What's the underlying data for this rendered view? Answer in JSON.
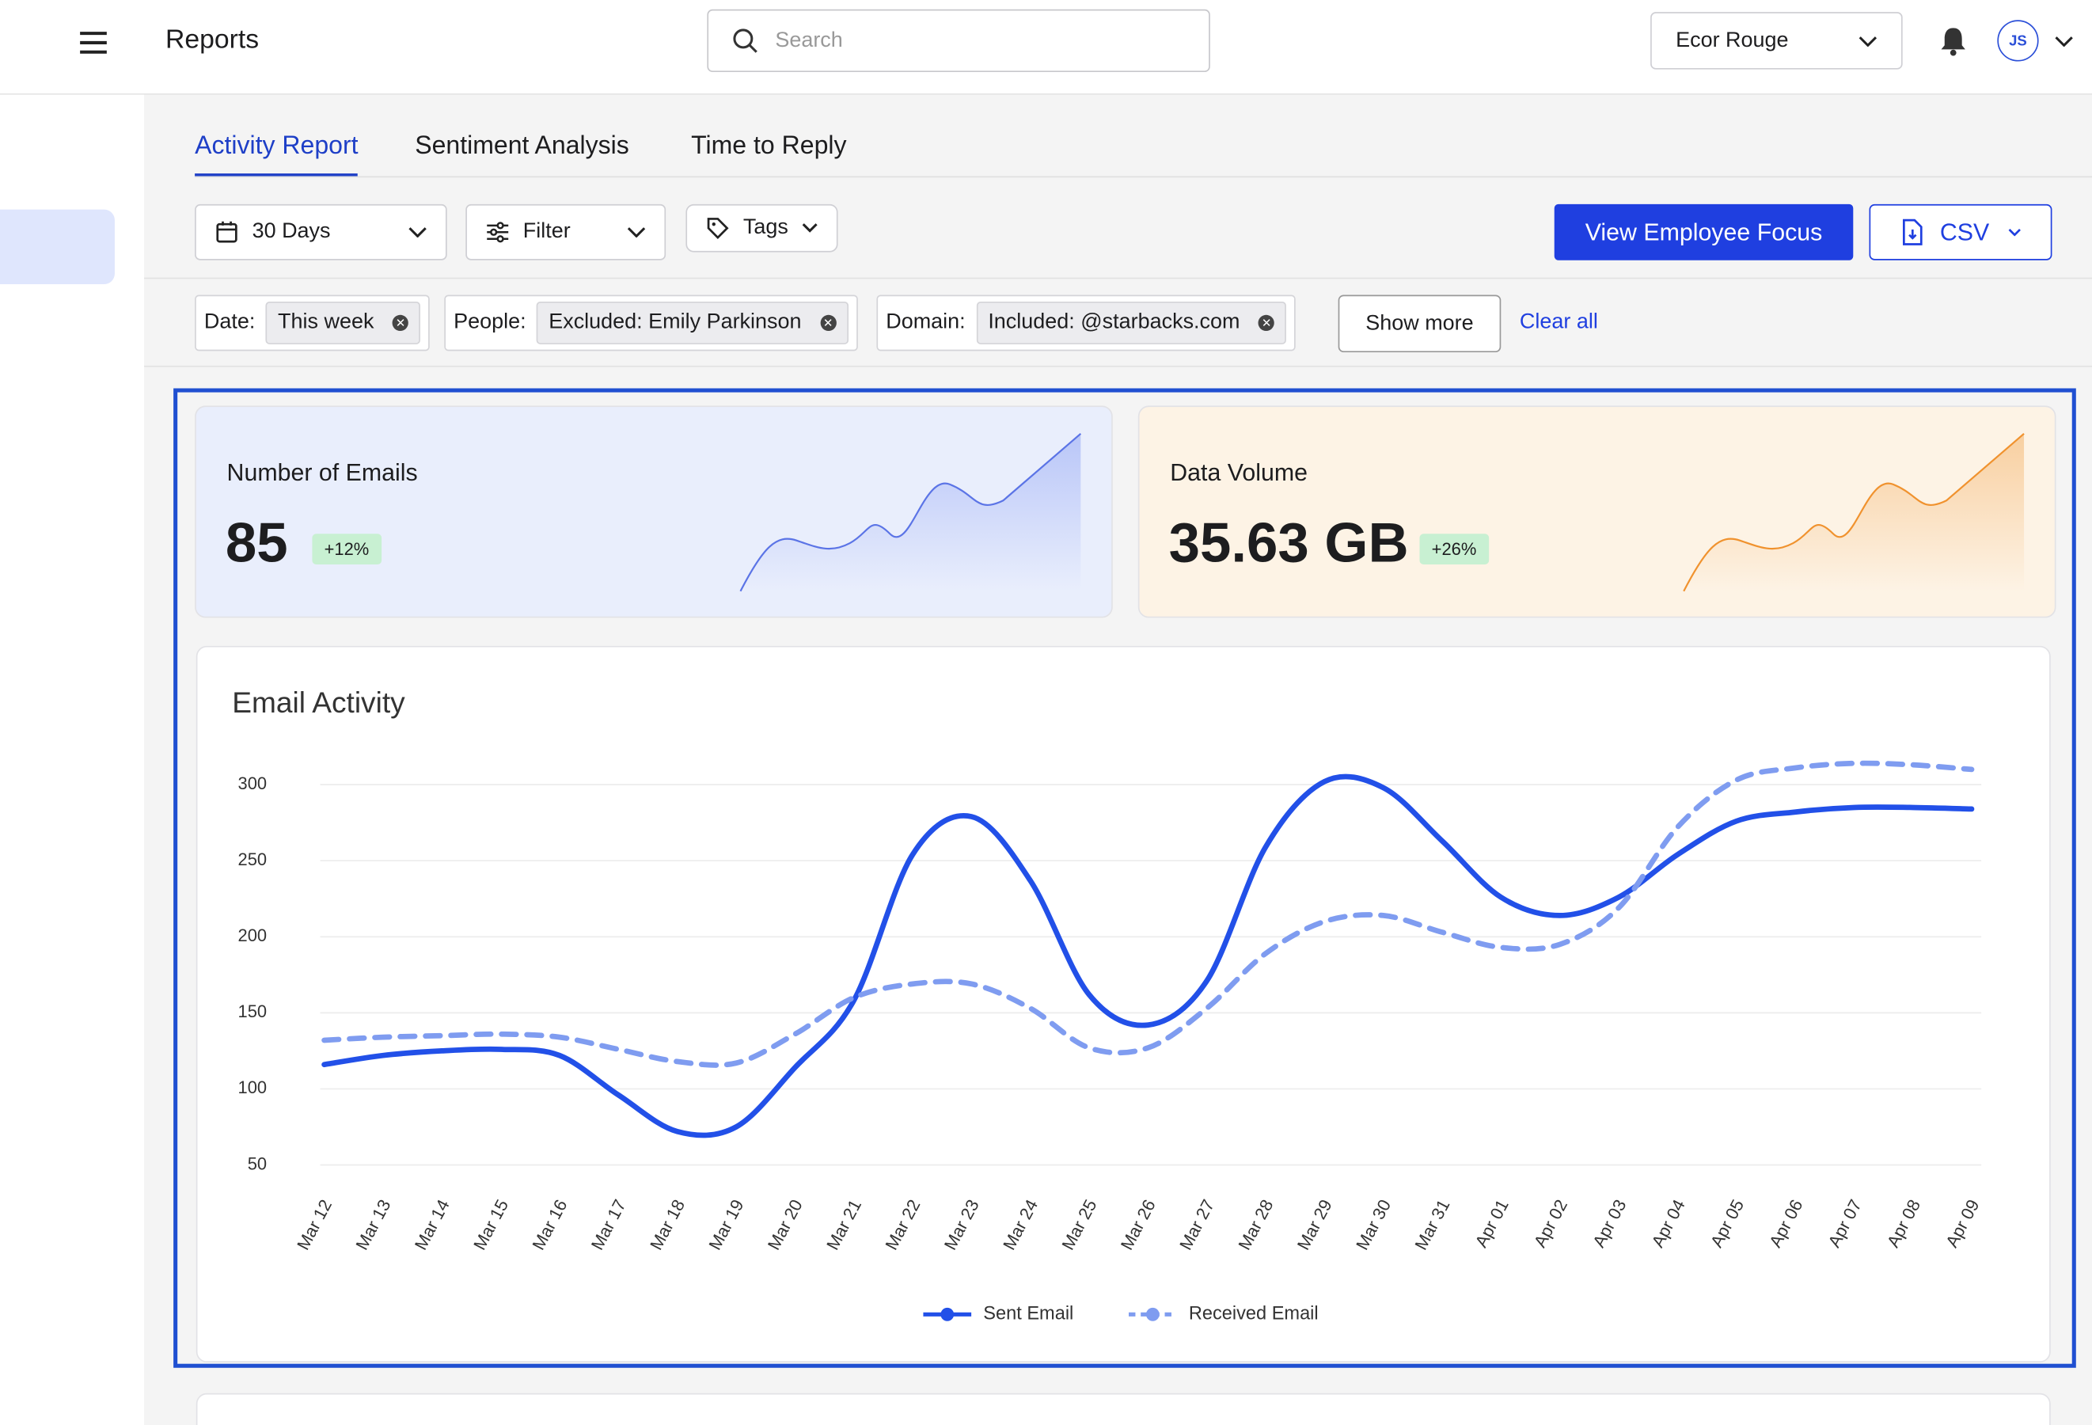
{
  "header": {
    "title": "Reports",
    "search_placeholder": "Search",
    "organization": "Ecor Rouge",
    "avatar": "JS"
  },
  "tabs": [
    "Activity Report",
    "Sentiment Analysis",
    "Time to Reply"
  ],
  "toolbar": {
    "range": "30 Days",
    "filter": "Filter",
    "tags": "Tags",
    "primary_action": "View Employee Focus",
    "export": "CSV"
  },
  "filters": [
    {
      "label": "Date:",
      "value": "This week"
    },
    {
      "label": "People:",
      "value": "Excluded: Emily Parkinson"
    },
    {
      "label": "Domain:",
      "value": "Included: @starbacks.com"
    }
  ],
  "show_more": "Show more",
  "clear_all": "Clear all",
  "cards": [
    {
      "title": "Number of Emails",
      "value": "85",
      "change": "+12%"
    },
    {
      "title": "Data Volume",
      "value": "35.63 GB",
      "change": "+26%"
    }
  ],
  "chart_data": {
    "type": "line",
    "title": "Email Activity",
    "categories": [
      "Mar 12",
      "Mar 13",
      "Mar 14",
      "Mar 15",
      "Mar 16",
      "Mar 17",
      "Mar 18",
      "Mar 19",
      "Mar 20",
      "Mar 21",
      "Mar 22",
      "Mar 23",
      "Mar 24",
      "Mar 25",
      "Mar 26",
      "Mar 27",
      "Mar 28",
      "Mar 29",
      "Mar 30",
      "Mar 31",
      "Apr 01",
      "Apr 02",
      "Apr 03",
      "Apr 04",
      "Apr 05",
      "Apr 06",
      "Apr 07",
      "Apr 08",
      "Apr 09"
    ],
    "series": [
      {
        "name": "Sent Email",
        "color": "#2250e8",
        "values": [
          116,
          122,
          125,
          126,
          122,
          96,
          72,
          75,
          114,
          158,
          254,
          279,
          237,
          162,
          142,
          171,
          259,
          302,
          298,
          263,
          226,
          214,
          226,
          254,
          276,
          282,
          285,
          285,
          284
        ]
      },
      {
        "name": "Received Email",
        "color": "#7f9cf0",
        "values": [
          132,
          134,
          135,
          136,
          134,
          126,
          118,
          117,
          136,
          160,
          169,
          169,
          153,
          127,
          127,
          153,
          189,
          210,
          214,
          203,
          193,
          195,
          219,
          272,
          303,
          311,
          314,
          313,
          310
        ]
      }
    ],
    "ylim": [
      50,
      300
    ],
    "yticks": [
      50,
      100,
      150,
      200,
      250,
      300
    ],
    "grid": true,
    "legend": "bottom"
  }
}
